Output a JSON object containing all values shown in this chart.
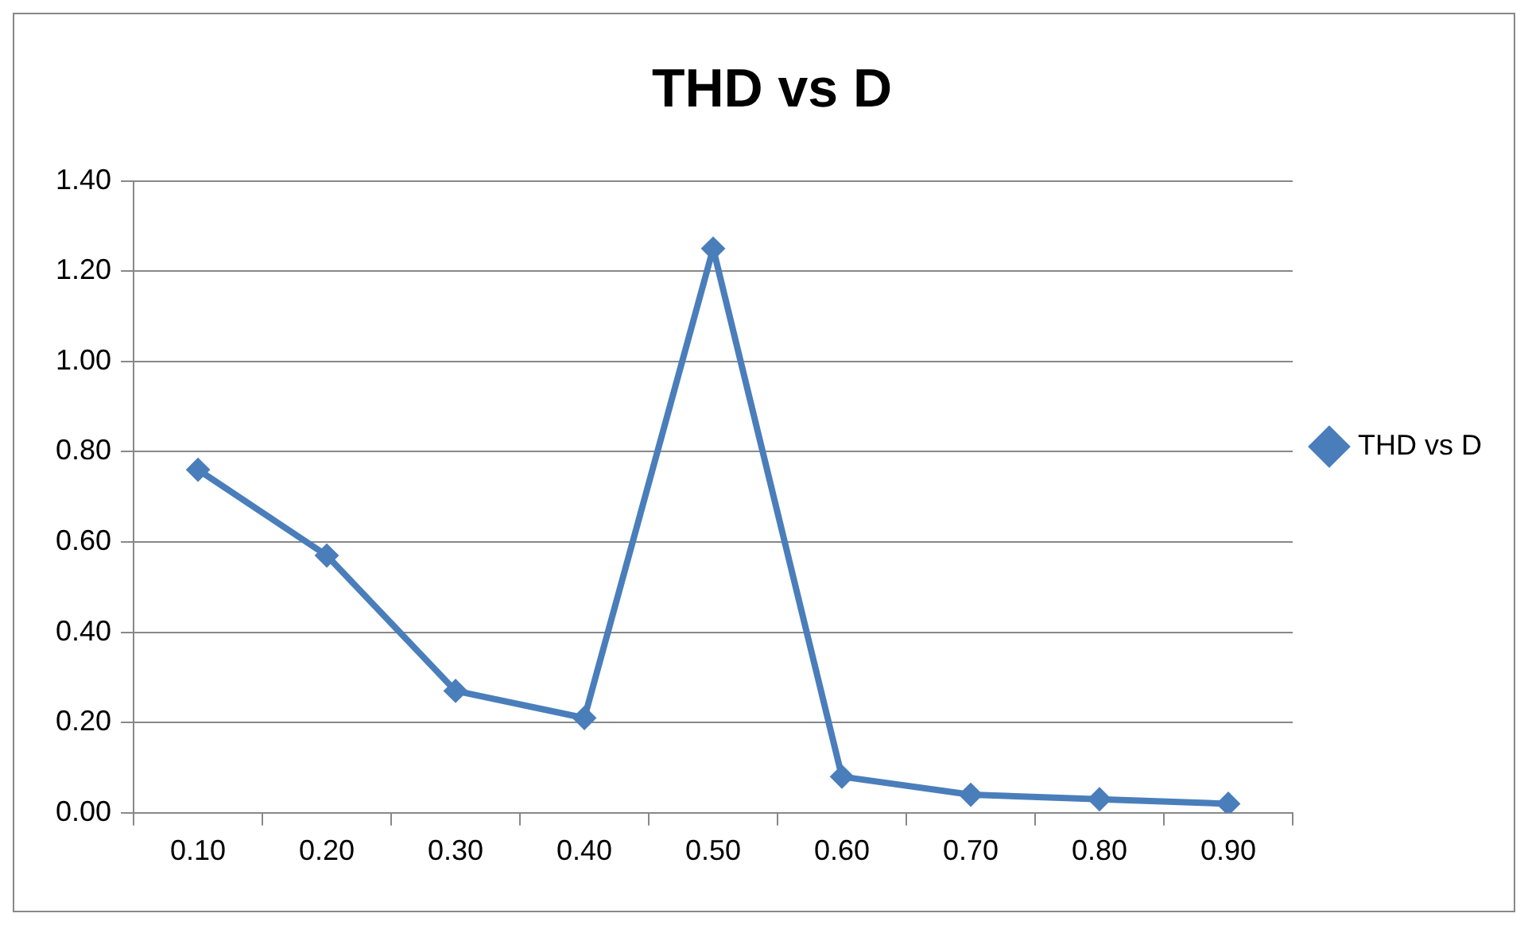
{
  "chart_data": {
    "type": "line",
    "title": "THD vs D",
    "categories": [
      "0.10",
      "0.20",
      "0.30",
      "0.40",
      "0.50",
      "0.60",
      "0.70",
      "0.80",
      "0.90"
    ],
    "series": [
      {
        "name": "THD vs D",
        "color": "#4a7ebb",
        "values": [
          0.76,
          0.57,
          0.27,
          0.21,
          1.25,
          0.08,
          0.04,
          0.03,
          0.02
        ]
      }
    ],
    "ylim": [
      0,
      1.4
    ],
    "yticks": [
      {
        "value": 0,
        "label": "0.00"
      },
      {
        "value": 0.2,
        "label": "0.20"
      },
      {
        "value": 0.4,
        "label": "0.40"
      },
      {
        "value": 0.6,
        "label": "0.60"
      },
      {
        "value": 0.8,
        "label": "0.80"
      },
      {
        "value": 1,
        "label": "1.00"
      },
      {
        "value": 1.2,
        "label": "1.20"
      },
      {
        "value": 1.4,
        "label": "1.40"
      }
    ],
    "grid": "y",
    "legend": "right",
    "marker": "diamond",
    "line_style": "solid"
  }
}
